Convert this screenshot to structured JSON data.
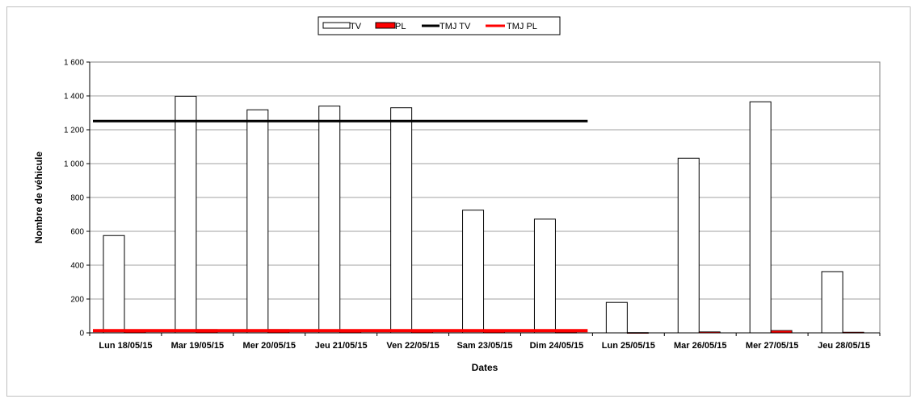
{
  "chart_data": {
    "type": "bar",
    "categories": [
      "Lun 18/05/15",
      "Mar 19/05/15",
      "Mer 20/05/15",
      "Jeu 21/05/15",
      "Ven 22/05/15",
      "Sam 23/05/15",
      "Dim 24/05/15",
      "Lun 25/05/15",
      "Mar 26/05/15",
      "Mer 27/05/15",
      "Jeu 28/05/15"
    ],
    "series": [
      {
        "name": "TV",
        "type": "bar",
        "values": [
          575,
          1398,
          1318,
          1340,
          1330,
          725,
          672,
          180,
          1032,
          1365,
          362
        ],
        "color": "#ffffff"
      },
      {
        "name": "PL",
        "type": "bar",
        "values": [
          8,
          20,
          20,
          18,
          18,
          8,
          4,
          2,
          6,
          14,
          4
        ],
        "color": "#ff0000"
      },
      {
        "name": "TMJ TV",
        "type": "line",
        "values": [
          1251,
          1251,
          1251,
          1251,
          1251,
          1251,
          1251,
          null,
          null,
          null,
          null
        ],
        "color": "#000000"
      },
      {
        "name": "TMJ PL",
        "type": "line",
        "values": [
          13,
          13,
          13,
          13,
          13,
          13,
          13,
          null,
          null,
          null,
          null
        ],
        "color": "#ff0000"
      }
    ],
    "title": "",
    "xlabel": "Dates",
    "ylabel": "Nombre de véhicule",
    "ylim": [
      0,
      1600
    ],
    "yticks": [
      0,
      200,
      400,
      600,
      800,
      1000,
      1200,
      1400,
      1600
    ],
    "ytick_labels": [
      "0",
      "200",
      "400",
      "600",
      "800",
      "1 000",
      "1 200",
      "1 400",
      "1 600"
    ],
    "grid": true,
    "legend_position": "top-center"
  }
}
